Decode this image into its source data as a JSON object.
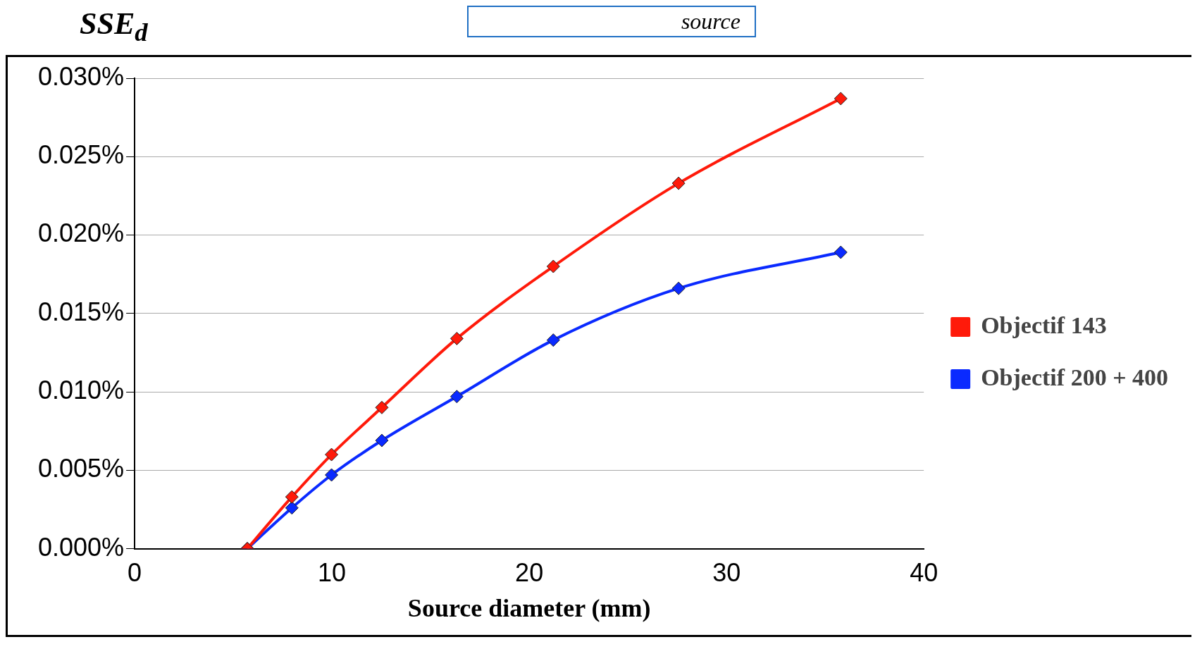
{
  "chart_data": {
    "type": "line",
    "xlabel": "Source diameter (mm)",
    "ylabel": "SSE$_{d}$",
    "annotations": [
      "source"
    ],
    "xlim": [
      0,
      40
    ],
    "xticks": [
      0,
      10,
      20,
      30,
      40
    ],
    "ylim": [
      0,
      0.03
    ],
    "yticks": [
      {
        "value": 0,
        "label": "0.000%"
      },
      {
        "value": 0.005,
        "label": "0.005%"
      },
      {
        "value": 0.01,
        "label": "0.010%"
      },
      {
        "value": 0.015,
        "label": "0.015%"
      },
      {
        "value": 0.02,
        "label": "0.020%"
      },
      {
        "value": 0.025,
        "label": "0.025%"
      },
      {
        "value": 0.03,
        "label": "0.030%"
      }
    ],
    "grid": "y",
    "legend": "right",
    "marker": "diamond",
    "line_style": "solid",
    "series": [
      {
        "name": "Objectif 143",
        "color": "#ff1a0a",
        "x": [
          5.71,
          7.97,
          9.98,
          12.53,
          16.33,
          21.22,
          27.57,
          35.79
        ],
        "values": [
          0,
          0.0033,
          0.006,
          0.009,
          0.0134,
          0.018,
          0.0233,
          0.0287
        ]
      },
      {
        "name": "Objectif 200 + 400",
        "color": "#0a2aff",
        "x": [
          5.71,
          7.97,
          9.98,
          12.53,
          16.33,
          21.22,
          27.57,
          35.79
        ],
        "values": [
          0,
          0.0026,
          0.0047,
          0.0069,
          0.0097,
          0.0133,
          0.0166,
          0.0189
        ]
      }
    ]
  }
}
